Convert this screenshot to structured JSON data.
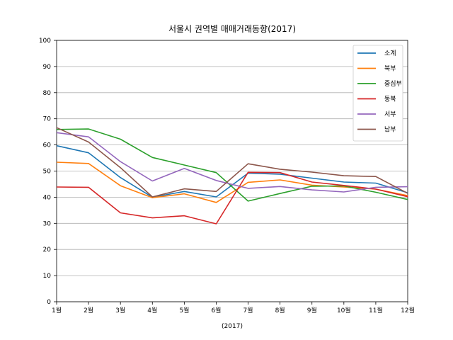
{
  "chart_data": {
    "type": "line",
    "title": "서울시 권역별 매매거래동향(2017)",
    "xlabel": "(2017)",
    "ylabel": "",
    "categories": [
      "1월",
      "2월",
      "3월",
      "4월",
      "5월",
      "6월",
      "7월",
      "8월",
      "9월",
      "10월",
      "11월",
      "12월"
    ],
    "ylim": [
      0,
      100
    ],
    "yticks": [
      0,
      10,
      20,
      30,
      40,
      50,
      60,
      70,
      80,
      90,
      100
    ],
    "grid": true,
    "legend_position": "top-right",
    "series": [
      {
        "name": "소계",
        "color": "#1f77b4",
        "values": [
          59.7,
          57.0,
          47.5,
          40.0,
          42.2,
          40.1,
          49.2,
          48.8,
          47.3,
          45.8,
          45.4,
          41.7
        ]
      },
      {
        "name": "북부",
        "color": "#ff7f0e",
        "values": [
          53.4,
          52.9,
          44.4,
          39.8,
          41.3,
          38.0,
          45.7,
          46.6,
          44.6,
          43.9,
          43.1,
          40.6
        ]
      },
      {
        "name": "중심부",
        "color": "#2ca02c",
        "values": [
          65.9,
          66.1,
          62.2,
          55.2,
          52.3,
          49.4,
          38.5,
          41.4,
          44.2,
          44.3,
          41.9,
          39.1
        ]
      },
      {
        "name": "동북",
        "color": "#d62728",
        "values": [
          43.9,
          43.8,
          34.0,
          32.1,
          32.9,
          29.8,
          49.5,
          49.4,
          45.8,
          44.5,
          43.1,
          40.2
        ]
      },
      {
        "name": "서부",
        "color": "#9467bd",
        "values": [
          64.7,
          63.1,
          53.6,
          46.2,
          51.0,
          46.4,
          43.4,
          44.1,
          42.8,
          42.0,
          43.8,
          44.0
        ]
      },
      {
        "name": "남부",
        "color": "#8c564b",
        "values": [
          66.6,
          61.1,
          51.3,
          40.1,
          43.2,
          42.2,
          52.8,
          50.7,
          49.6,
          48.2,
          47.9,
          41.5
        ]
      }
    ]
  }
}
